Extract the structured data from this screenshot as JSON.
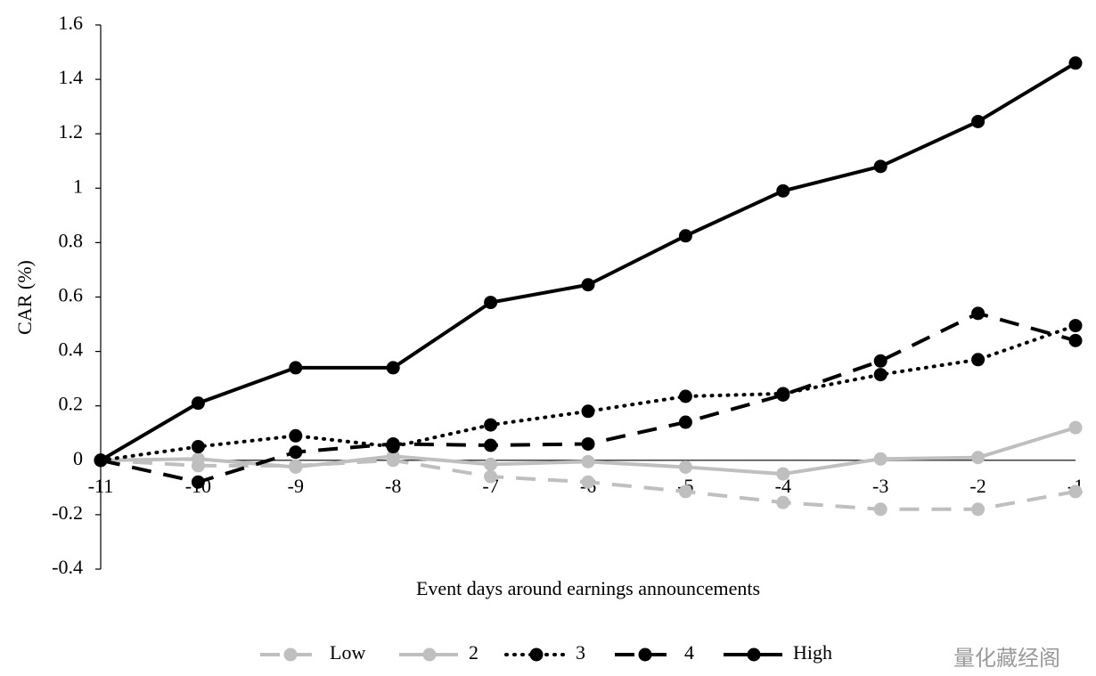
{
  "chart_data": {
    "type": "line",
    "y_label": "CAR (%)",
    "x_label": "Event days around earnings announcements",
    "x": [
      -11,
      -10,
      -9,
      -8,
      -7,
      -6,
      -5,
      -4,
      -3,
      -2,
      -1
    ],
    "xlim": [
      -11,
      -1
    ],
    "xticks": [
      -11,
      -10,
      -9,
      -8,
      -7,
      -6,
      -5,
      -4,
      -3,
      -2,
      -1
    ],
    "ylim": [
      -0.4,
      1.6
    ],
    "yticks": [
      -0.4,
      -0.2,
      0,
      0.2,
      0.4,
      0.6,
      0.8,
      1,
      1.2,
      1.4,
      1.6
    ],
    "legend": "bottom",
    "series": [
      {
        "name": "Low",
        "color": "#bfbfbf",
        "style": "dashed",
        "values": [
          0,
          -0.02,
          -0.02,
          0.0,
          -0.06,
          -0.08,
          -0.115,
          -0.155,
          -0.18,
          -0.18,
          -0.115
        ]
      },
      {
        "name": "2",
        "color": "#bfbfbf",
        "style": "solid",
        "values": [
          0,
          0.005,
          -0.025,
          0.015,
          -0.015,
          -0.005,
          -0.025,
          -0.05,
          0.005,
          0.01,
          0.12
        ]
      },
      {
        "name": "3",
        "color": "#000000",
        "style": "dotted",
        "values": [
          0,
          0.05,
          0.09,
          0.05,
          0.13,
          0.18,
          0.235,
          0.245,
          0.315,
          0.37,
          0.495
        ]
      },
      {
        "name": "4",
        "color": "#000000",
        "style": "dashed",
        "values": [
          0,
          -0.08,
          0.03,
          0.06,
          0.055,
          0.06,
          0.14,
          0.24,
          0.365,
          0.54,
          0.44
        ]
      },
      {
        "name": "High",
        "color": "#000000",
        "style": "solid",
        "values": [
          0,
          0.21,
          0.34,
          0.34,
          0.58,
          0.645,
          0.825,
          0.99,
          1.08,
          1.245,
          1.46
        ]
      }
    ],
    "watermark": "量化藏经阁"
  }
}
